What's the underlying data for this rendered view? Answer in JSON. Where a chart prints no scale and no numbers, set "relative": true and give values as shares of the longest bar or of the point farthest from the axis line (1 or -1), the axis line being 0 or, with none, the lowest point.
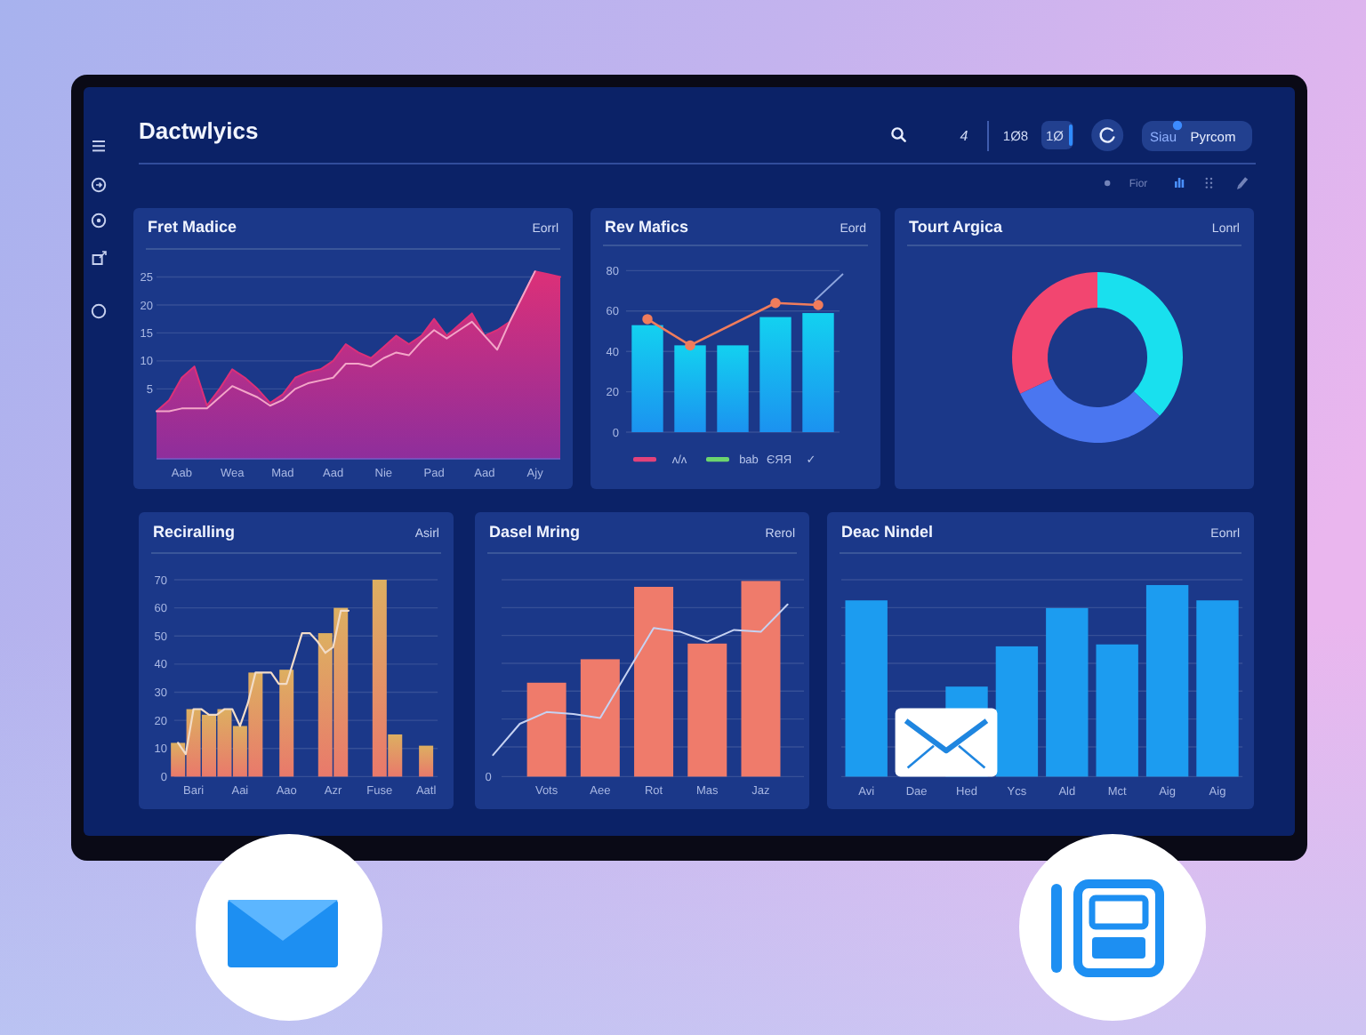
{
  "chart_data": [
    {
      "type": "other",
      "title": "Dactwlyics",
      "annotations": [
        "4",
        "1Ø8",
        "1Ø",
        "Siau",
        "Pyrcom",
        "Fior"
      ]
    },
    {
      "type": "line",
      "title": "Fret Madice",
      "subtitle": "Eorrl",
      "ylim": [
        -7.5,
        30
      ],
      "yticks": [
        5,
        10,
        15,
        20,
        25
      ],
      "grid": "y",
      "categories": [
        null,
        null,
        "Aab",
        null,
        null,
        null,
        "Wea",
        null,
        null,
        null,
        "Mad",
        null,
        null,
        null,
        "Aad",
        null,
        null,
        null,
        "Nie",
        null,
        null,
        null,
        "Pad",
        null,
        null,
        null,
        "Aad",
        null,
        null,
        null,
        "Ajy",
        null,
        null
      ],
      "series": [
        {
          "color": "#dc3078",
          "values": [
            1,
            3,
            7,
            9,
            2,
            5,
            8.5,
            7,
            5,
            2.5,
            4,
            7,
            8,
            8.5,
            10,
            13,
            11.5,
            10.5,
            12.5,
            14.5,
            13,
            14.5,
            17.5,
            14.5,
            16.5,
            18.5,
            14.5,
            15.5,
            17,
            21.5,
            26,
            25.5,
            25
          ],
          "lower": [
            -7.5,
            -7.5,
            -7.5,
            -7.5,
            -7.5,
            -7.5,
            -7.5,
            -7.5,
            -7.5,
            -7.5,
            -7.5,
            -7.5,
            -7.5,
            -7.5,
            -7.5,
            -7.5,
            -7.5,
            -7.5,
            -7.5,
            -7.5,
            -7.5,
            -7.5,
            -7.5,
            -7.5,
            -7.5,
            -7.5,
            -7.5,
            -7.5,
            -7.5,
            -7.5,
            -7.5,
            -7.5,
            -7.5
          ],
          "upper": [
            1,
            3,
            7,
            9,
            2,
            5,
            8.5,
            7,
            5,
            2.5,
            4,
            7,
            8,
            8.5,
            10,
            13,
            11.5,
            10.5,
            12.5,
            14.5,
            13,
            14.5,
            17.5,
            14.5,
            16.5,
            18.5,
            14.5,
            15.5,
            17,
            21.5,
            26,
            25.5,
            25
          ]
        },
        {
          "color": "#f3a6c8",
          "values": [
            1,
            1,
            1.5,
            1.5,
            1.5,
            3.5,
            5.5,
            4.5,
            3.5,
            2,
            3,
            5,
            6,
            6.5,
            7,
            9.5,
            9.5,
            9,
            10.5,
            11.5,
            11,
            13.5,
            15.5,
            14,
            15.5,
            17,
            14.5,
            12,
            17,
            21.5,
            26,
            null,
            null
          ]
        }
      ]
    },
    {
      "type": "bar",
      "title": "Rev Mafics",
      "subtitle": "Eord",
      "ylim": [
        0,
        80
      ],
      "yticks": [
        0,
        20,
        40,
        60,
        80
      ],
      "grid": "y",
      "marker": "circle",
      "categories": [
        null,
        null,
        null,
        null,
        null
      ],
      "series": [
        {
          "color": "#16b4f0",
          "values": [
            53,
            43,
            43,
            57,
            59
          ]
        },
        {
          "type": "line",
          "color": "#f07c5c",
          "values": [
            56,
            43,
            null,
            64,
            63
          ]
        }
      ],
      "annotations": [
        "ʌ/ʌ",
        "bab",
        "ЄЯЯ",
        "✓"
      ]
    },
    {
      "type": "donut",
      "title": "Tourt Argica",
      "subtitle": "Lonrl",
      "categories": [
        null,
        null,
        null
      ],
      "values": [
        37,
        31,
        32
      ],
      "colors": [
        "#19e0ee",
        "#4a76f0",
        "#f24670"
      ]
    },
    {
      "type": "bar",
      "title": "Reciralling",
      "subtitle": "Asirl",
      "ylim": [
        0,
        70
      ],
      "yticks": [
        0,
        10,
        20,
        30,
        40,
        50,
        60,
        70
      ],
      "grid": "y",
      "categories": [
        null,
        null,
        "Bari",
        null,
        null,
        null,
        null,
        null,
        "Aai",
        null,
        null,
        null,
        null,
        null,
        "Aao",
        null,
        null,
        null,
        null,
        null,
        "Azr",
        null,
        null,
        null,
        null,
        null,
        "Fuse",
        null,
        null,
        null,
        null,
        null,
        "Aatl",
        null
      ],
      "series": [
        {
          "color": "#e39266",
          "values": [
            12,
            null,
            24,
            null,
            22,
            null,
            24,
            null,
            18,
            null,
            37,
            null,
            null,
            null,
            38,
            null,
            null,
            null,
            null,
            51,
            null,
            60,
            null,
            null,
            null,
            null,
            70,
            null,
            15,
            null,
            null,
            null,
            11,
            null
          ]
        },
        {
          "type": "line",
          "color": "#f2dcc8",
          "values": [
            12,
            8,
            24,
            24,
            22,
            22,
            24,
            24,
            18,
            26,
            37,
            37,
            37,
            33,
            33,
            42,
            51,
            51,
            48,
            44,
            46,
            59,
            59,
            null,
            null,
            null,
            null,
            null,
            null,
            null,
            null,
            null,
            null,
            null
          ]
        }
      ]
    },
    {
      "type": "bar",
      "title": "Dasel Mring",
      "subtitle": "Rerol",
      "relative": true,
      "grid": "y",
      "categories": [
        null,
        null,
        "Vots",
        null,
        "Aee",
        null,
        "Rot",
        null,
        "Mas",
        null,
        "Jaz",
        null
      ],
      "series": [
        {
          "color": "#ef7b6b",
          "values": [
            null,
            null,
            0.48,
            null,
            0.6,
            null,
            0.97,
            null,
            0.68,
            null,
            1,
            null
          ]
        },
        {
          "type": "line",
          "color": "#c6d2f2",
          "values": [
            0.11,
            0.27,
            0.33,
            0.32,
            0.3,
            0.53,
            0.76,
            0.74,
            0.69,
            0.75,
            0.74,
            0.88
          ]
        }
      ],
      "annotations": [
        "0"
      ]
    },
    {
      "type": "bar",
      "title": "Deac Nindel",
      "subtitle": "Eonrl",
      "relative": true,
      "grid": "y",
      "categories": [
        "Avi",
        "Dae",
        "Hed",
        "Ycs",
        "Ald",
        "Mct",
        "Aig",
        "Aig"
      ],
      "values": [
        0.92,
        null,
        0.47,
        0.68,
        0.88,
        0.69,
        1,
        0.92
      ],
      "color": "#1c9cf0"
    }
  ]
}
